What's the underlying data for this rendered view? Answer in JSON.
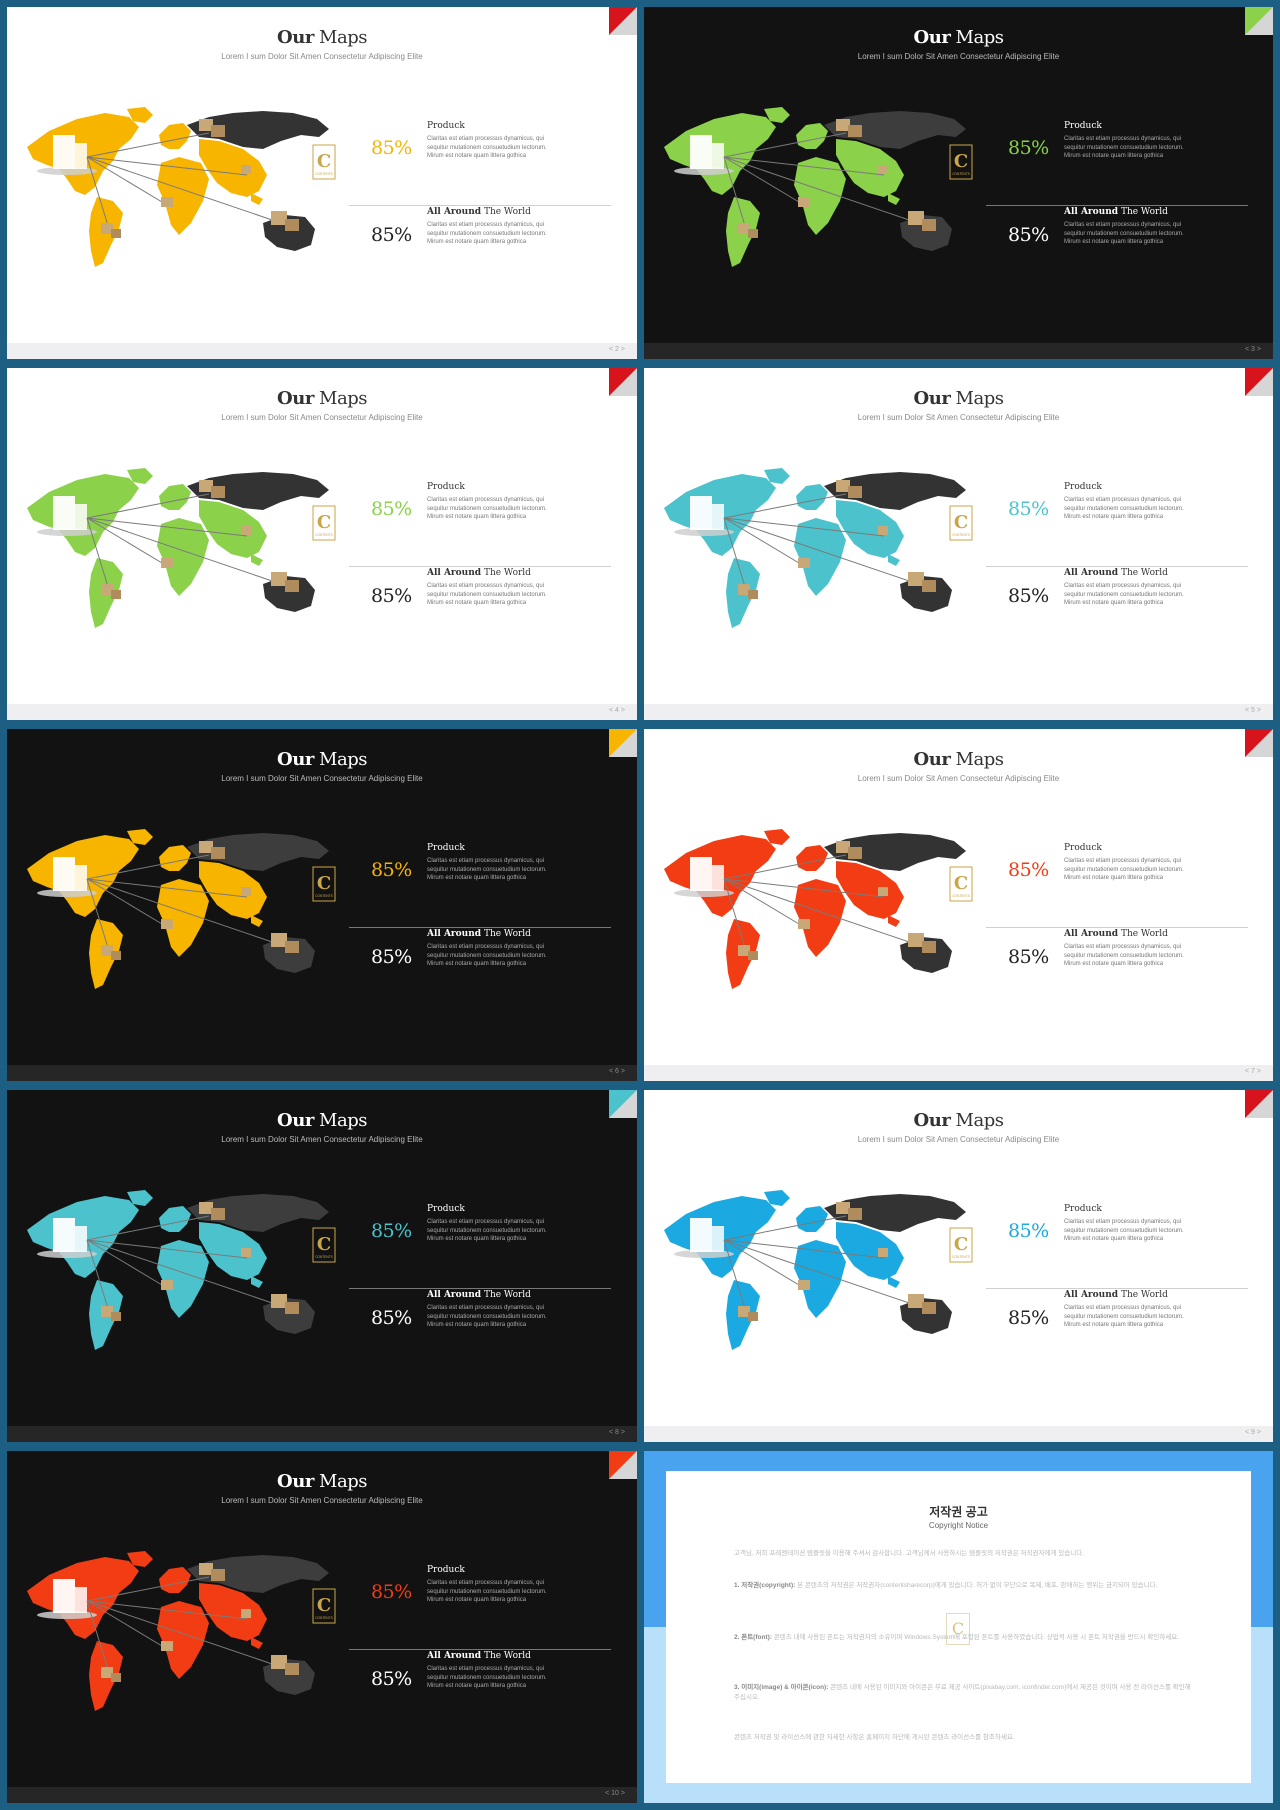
{
  "title_bold": "Our",
  "title_rest": "Maps",
  "subtitle": "Lorem I sum Dolor Sit Amen Consectetur Adipiscing Elite",
  "section1_title": "Produck",
  "section2_title_bold": "All Around",
  "section2_title_rest": "The World",
  "body_text": "Claritas est etiam processus dynamicus, qui sequitur mutationem consuetudium lectorum. Mirum est notare quam littera gothica",
  "badge_letter": "C",
  "badge_text": "CONTENTS",
  "pager_prev": "<",
  "pager_next": ">",
  "slides": [
    {
      "theme": "light",
      "accent": "#f7b500",
      "corner": "#d7141c",
      "pct1": "85%",
      "pct2": "85%",
      "page": "2"
    },
    {
      "theme": "dark",
      "accent": "#8bd14a",
      "corner": "#8bd14a",
      "pct1": "85%",
      "pct2": "85%",
      "page": "3"
    },
    {
      "theme": "light",
      "accent": "#8bd14a",
      "corner": "#d7141c",
      "pct1": "85%",
      "pct2": "85%",
      "page": "4"
    },
    {
      "theme": "light",
      "accent": "#4cc3cc",
      "corner": "#d7141c",
      "pct1": "85%",
      "pct2": "85%",
      "page": "5"
    },
    {
      "theme": "dark",
      "accent": "#f7b500",
      "corner": "#f7b500",
      "pct1": "85%",
      "pct2": "85%",
      "page": "6"
    },
    {
      "theme": "light",
      "accent": "#f23d14",
      "corner": "#d7141c",
      "pct1": "85%",
      "pct2": "85%",
      "page": "7"
    },
    {
      "theme": "dark",
      "accent": "#4cc3cc",
      "corner": "#4cc3cc",
      "pct1": "85%",
      "pct2": "85%",
      "page": "8"
    },
    {
      "theme": "light",
      "accent": "#1aa9e0",
      "corner": "#d7141c",
      "pct1": "85%",
      "pct2": "85%",
      "page": "9"
    },
    {
      "theme": "dark",
      "accent": "#f23d14",
      "corner": "#f23d14",
      "pct1": "85%",
      "pct2": "85%",
      "page": "10"
    }
  ],
  "notice": {
    "title": "저작권 공고",
    "subtitle": "Copyright Notice",
    "p0": "고객님, 저희 프레젠테이션 템플릿을 이용해 주셔서 감사합니다. 고객님께서 사용하시는 템플릿의 저작권은 저작권자에게 있습니다.",
    "p1_label": "1. 저작권(copyright):",
    "p1": "본 콘텐츠의 저작권은 저작권자(contentsharecorp)에게 있습니다. 허가 없이 무단으로 복제, 배포, 판매하는 행위는 금지되어 있습니다.",
    "p2_label": "2. 폰트(font):",
    "p2": "콘텐츠 내에 사용된 폰트는 저작권자의 소유이며 Windows System에 포함된 폰트를 사용하였습니다. 상업적 사용 시 폰트 저작권을 반드시 확인하세요.",
    "p3_label": "3. 이미지(image) & 아이콘(icon):",
    "p3": "콘텐츠 내에 사용된 이미지와 아이콘은 무료 제공 사이트(pixabay.com, iconfinder.com)에서 제공된 것이며 사용 전 라이선스를 확인해 주십시오.",
    "p4": "콘텐츠 저작권 및 라이선스에 관한 자세한 사항은 홈페이지 하단에 게시된 콘텐츠 라이선스를 참조하세요.",
    "bg_top": "#4aa3ee",
    "bg_bottom": "#b9e0fb"
  }
}
